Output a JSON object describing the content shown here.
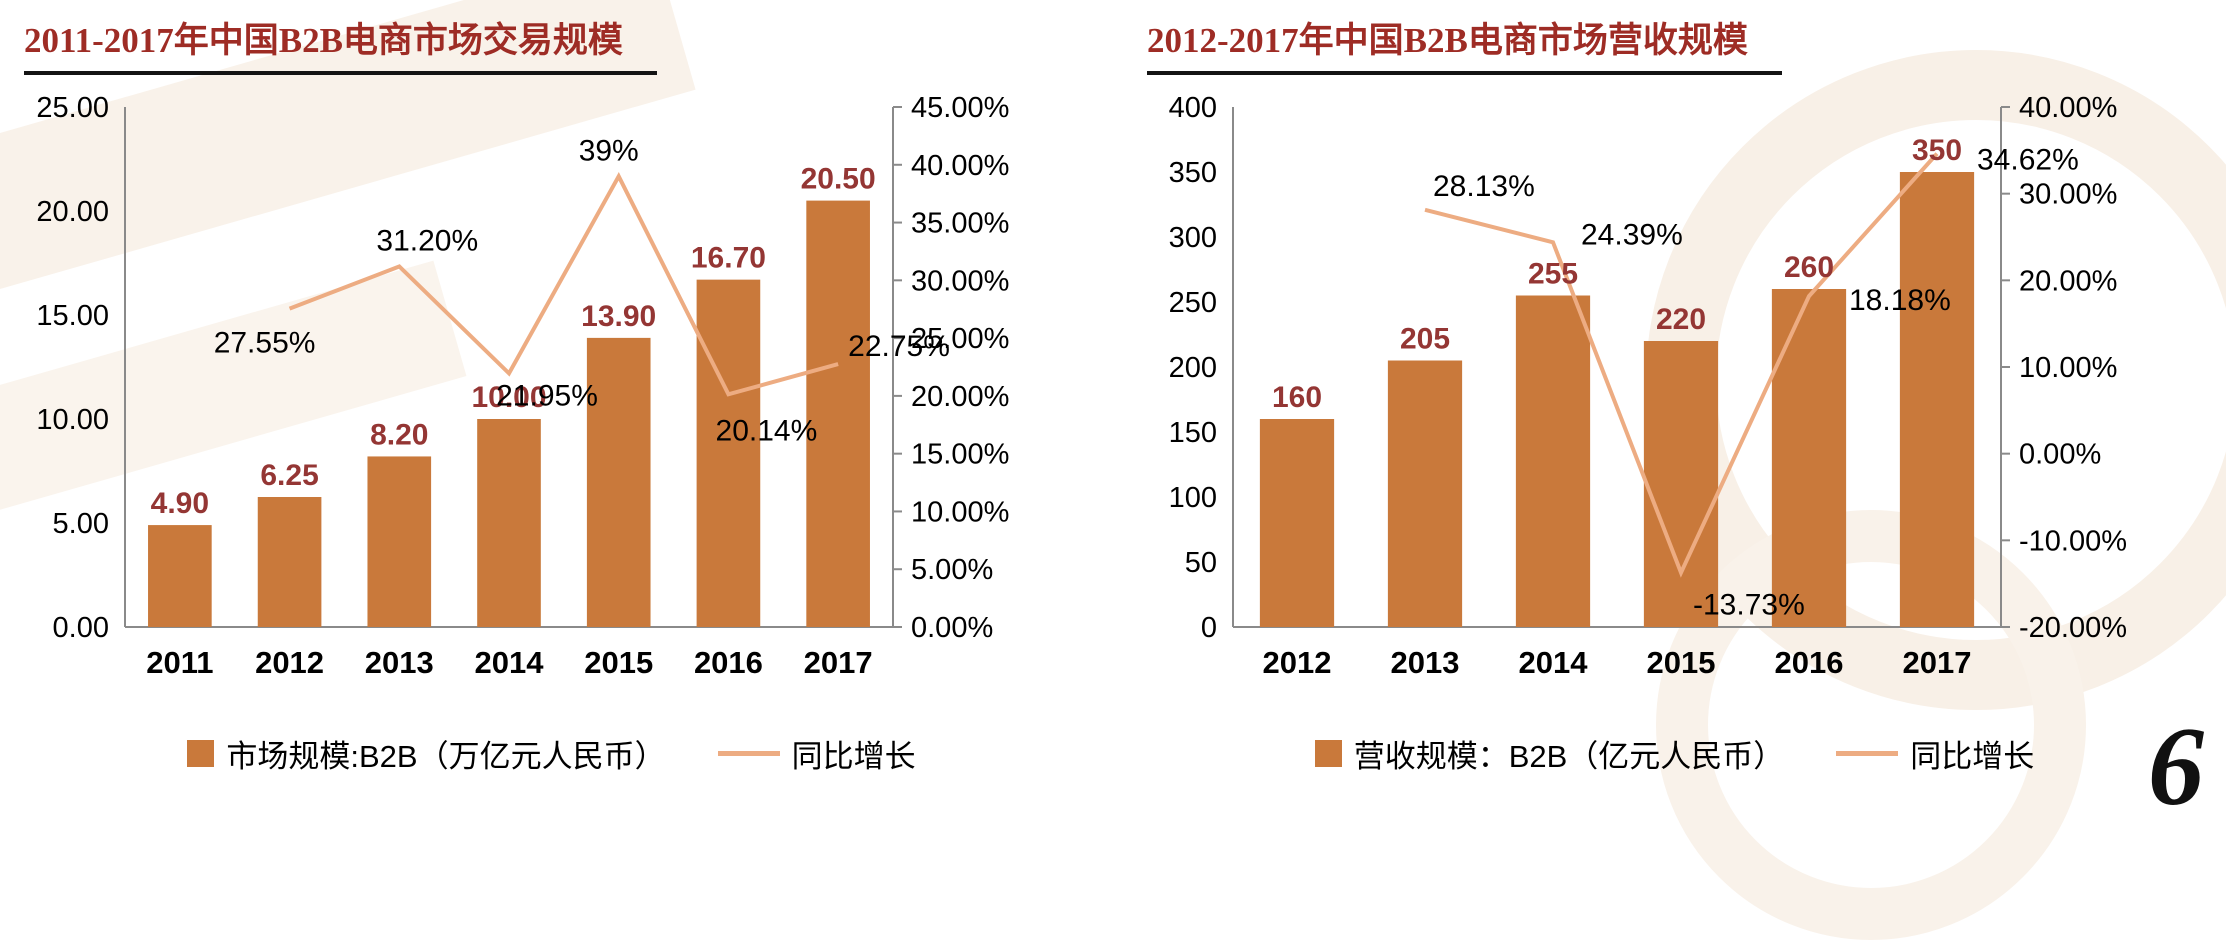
{
  "page": {
    "page_number": "6"
  },
  "colors": {
    "bar": "#c9793b",
    "line": "#edac82",
    "title": "#9e2c25",
    "bar_label": "#943634",
    "axis": "#8a8a8a"
  },
  "chart_data": [
    {
      "type": "bar",
      "title": "2011-2017年中国B2B电商市场交易规模",
      "categories": [
        "2011",
        "2012",
        "2013",
        "2014",
        "2015",
        "2016",
        "2017"
      ],
      "series": [
        {
          "name": "市场规模:B2B（万亿元人民币）",
          "type": "bar",
          "axis": "left",
          "values": [
            4.9,
            6.25,
            8.2,
            10.0,
            13.9,
            16.7,
            20.5
          ],
          "labels": [
            "4.90",
            "6.25",
            "8.20",
            "10.00",
            "13.90",
            "16.70",
            "20.50"
          ]
        },
        {
          "name": "同比增长",
          "type": "line",
          "axis": "right",
          "values": [
            null,
            27.55,
            31.2,
            21.95,
            39,
            20.14,
            22.75
          ],
          "labels": [
            "",
            "27.55%",
            "31.20%",
            "21.95%",
            "39%",
            "20.14%",
            "22.75%"
          ],
          "label_placement": [
            null,
            {
              "dx": -25,
              "dy": 44,
              "anchor": "middle"
            },
            {
              "dx": 28,
              "dy": -16,
              "anchor": "middle"
            },
            {
              "dx": 38,
              "dy": 32,
              "anchor": "middle"
            },
            {
              "dx": -10,
              "dy": -16,
              "anchor": "middle"
            },
            {
              "dx": 38,
              "dy": 46,
              "anchor": "middle"
            },
            {
              "dx": 10,
              "dy": -8,
              "anchor": "start"
            }
          ]
        }
      ],
      "left_axis": {
        "ylim": [
          0,
          25
        ],
        "ticks": [
          "0.00",
          "5.00",
          "10.00",
          "15.00",
          "20.00",
          "25.00"
        ]
      },
      "right_axis": {
        "ylim": [
          0,
          45
        ],
        "ticks": [
          "0.00%",
          "5.00%",
          "10.00%",
          "15.00%",
          "20.00%",
          "25.00%",
          "30.00%",
          "35.00%",
          "40.00%",
          "45.00%"
        ]
      },
      "grid": false,
      "legend_position": "bottom"
    },
    {
      "type": "bar",
      "title": "2012-2017年中国B2B电商市场营收规模",
      "categories": [
        "2012",
        "2013",
        "2014",
        "2015",
        "2016",
        "2017"
      ],
      "series": [
        {
          "name": "营收规模：B2B（亿元人民币）",
          "type": "bar",
          "axis": "left",
          "values": [
            160,
            205,
            255,
            220,
            260,
            350
          ],
          "labels": [
            "160",
            "205",
            "255",
            "220",
            "260",
            "350"
          ]
        },
        {
          "name": "同比增长",
          "type": "line",
          "axis": "right",
          "values": [
            null,
            28.13,
            24.39,
            -13.73,
            18.18,
            34.62
          ],
          "labels": [
            "",
            "28.13%",
            "24.39%",
            "-13.73%",
            "18.18%",
            "34.62%"
          ],
          "label_placement": [
            null,
            {
              "dx": 8,
              "dy": -14,
              "anchor": "start"
            },
            {
              "dx": 28,
              "dy": 2,
              "anchor": "start"
            },
            {
              "dx": 12,
              "dy": 42,
              "anchor": "start"
            },
            {
              "dx": 40,
              "dy": 14,
              "anchor": "start"
            },
            {
              "dx": 40,
              "dy": 16,
              "anchor": "start"
            }
          ]
        }
      ],
      "left_axis": {
        "ylim": [
          0,
          400
        ],
        "ticks": [
          "0",
          "50",
          "100",
          "150",
          "200",
          "250",
          "300",
          "350",
          "400"
        ]
      },
      "right_axis": {
        "ylim": [
          -20,
          40
        ],
        "ticks": [
          "-20.00%",
          "-10.00%",
          "0.00%",
          "10.00%",
          "20.00%",
          "30.00%",
          "40.00%"
        ]
      },
      "grid": false,
      "legend_position": "bottom"
    }
  ]
}
